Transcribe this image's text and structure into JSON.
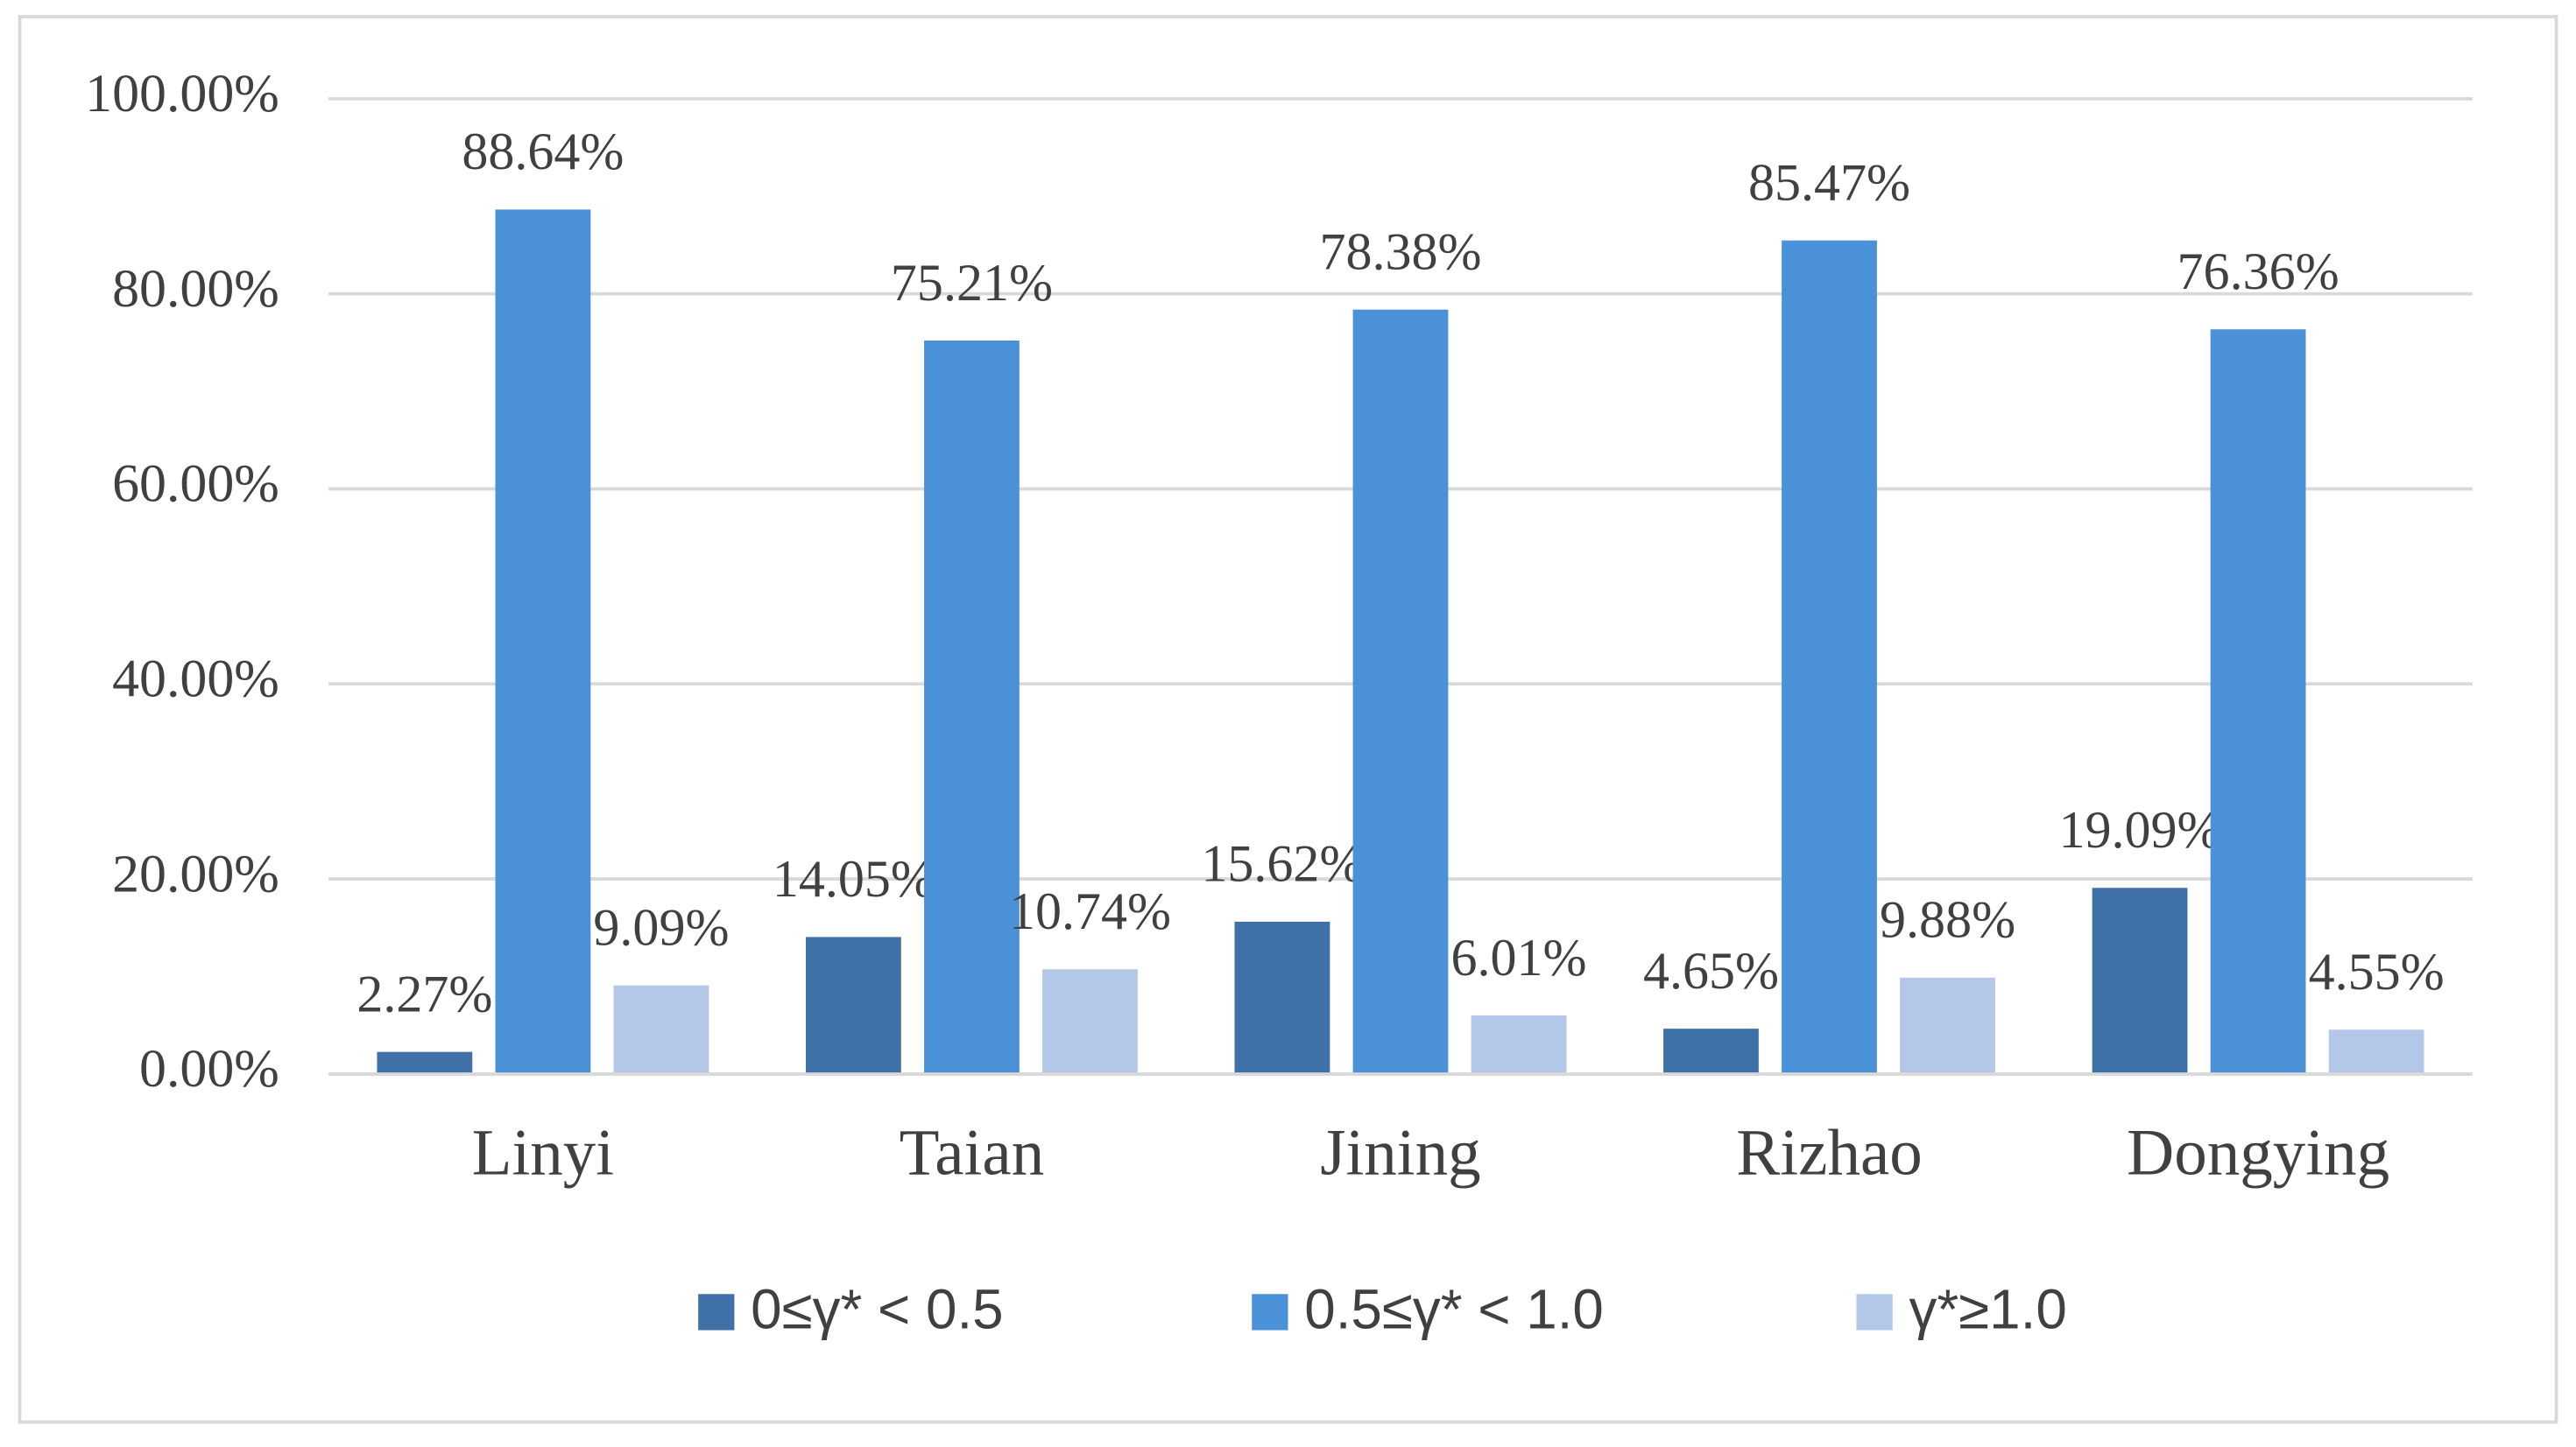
{
  "chart_data": {
    "type": "bar",
    "categories": [
      "Linyi",
      "Taian",
      "Jining",
      "Rizhao",
      "Dongying"
    ],
    "series": [
      {
        "name": "0≤γ* < 0.5",
        "color": "#3f71a8",
        "values": [
          2.27,
          14.05,
          15.62,
          4.65,
          19.09
        ],
        "value_labels": [
          "2.27%",
          "14.05%",
          "15.62%",
          "4.65%",
          "19.09%"
        ]
      },
      {
        "name": "0.5≤γ* < 1.0",
        "color": "#4b91d8",
        "values": [
          88.64,
          75.21,
          78.38,
          85.47,
          76.36
        ],
        "value_labels": [
          "88.64%",
          "75.21%",
          "78.38%",
          "85.47%",
          "76.36%"
        ]
      },
      {
        "name": "γ*≥1.0",
        "color": "#b3c7e8",
        "values": [
          9.09,
          10.74,
          6.01,
          9.88,
          4.55
        ],
        "value_labels": [
          "9.09%",
          "10.74%",
          "6.01%",
          "9.88%",
          "4.55%"
        ]
      }
    ],
    "ylim": [
      0,
      100
    ],
    "yticks": [
      {
        "value": 0,
        "label": "0.00%"
      },
      {
        "value": 20,
        "label": "20.00%"
      },
      {
        "value": 40,
        "label": "40.00%"
      },
      {
        "value": 60,
        "label": "60.00%"
      },
      {
        "value": 80,
        "label": "80.00%"
      },
      {
        "value": 100,
        "label": "100.00%"
      }
    ],
    "grid": true,
    "legend": "bottom"
  }
}
